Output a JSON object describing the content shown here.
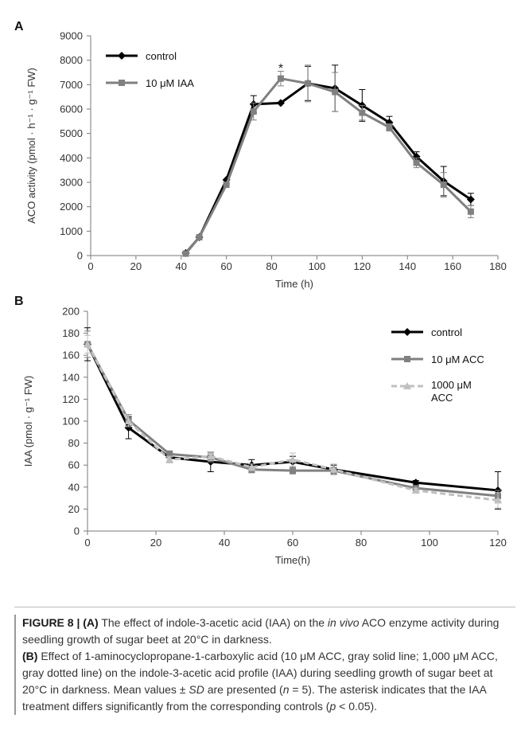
{
  "chart_data": [
    {
      "panel": "A",
      "type": "line",
      "xlabel": "Time (h)",
      "ylabel": "ACO activity (pmol · h⁻¹ · g⁻¹ FW)",
      "xlim": [
        0,
        180
      ],
      "ylim": [
        0,
        9000
      ],
      "xticks": [
        0,
        20,
        40,
        60,
        80,
        100,
        120,
        140,
        160,
        180
      ],
      "yticks": [
        0,
        1000,
        2000,
        3000,
        4000,
        5000,
        6000,
        7000,
        8000,
        9000
      ],
      "grid": false,
      "legend": "top-left",
      "annotation": {
        "text": "*",
        "x": 84,
        "y": 7700
      },
      "series": [
        {
          "name": "control",
          "color": "#000000",
          "marker": "diamond",
          "dash": "solid",
          "x": [
            42,
            48,
            60,
            72,
            84,
            96,
            108,
            120,
            132,
            144,
            156,
            168
          ],
          "y": [
            100,
            750,
            3100,
            6200,
            6250,
            7050,
            6850,
            6150,
            5450,
            4050,
            3050,
            2300
          ],
          "err": [
            0,
            0,
            0,
            350,
            0,
            700,
            950,
            650,
            250,
            200,
            600,
            250
          ]
        },
        {
          "name": "10 μM IAA",
          "color": "#808080",
          "marker": "square",
          "dash": "solid",
          "x": [
            42,
            48,
            60,
            72,
            84,
            96,
            108,
            120,
            132,
            144,
            156,
            168
          ],
          "y": [
            80,
            750,
            2900,
            5900,
            7250,
            7050,
            6700,
            5850,
            5250,
            3800,
            2900,
            1800
          ],
          "err": [
            0,
            0,
            0,
            350,
            300,
            750,
            800,
            300,
            150,
            200,
            500,
            250
          ]
        }
      ]
    },
    {
      "panel": "B",
      "type": "line",
      "xlabel": "Time(h)",
      "ylabel": "IAA (pmol · g⁻¹ FW)",
      "xlim": [
        0,
        120
      ],
      "ylim": [
        0,
        200
      ],
      "xticks": [
        0,
        20,
        40,
        60,
        80,
        100,
        120
      ],
      "yticks": [
        0,
        20,
        40,
        60,
        80,
        100,
        120,
        140,
        160,
        180,
        200
      ],
      "grid": false,
      "legend": "right",
      "series": [
        {
          "name": "control",
          "color": "#000000",
          "marker": "diamond",
          "dash": "solid",
          "x": [
            0,
            12,
            24,
            36,
            48,
            60,
            72,
            96,
            120
          ],
          "y": [
            170,
            94,
            67,
            63,
            60,
            63,
            56,
            44,
            37
          ],
          "err": [
            15,
            10,
            4,
            9,
            5,
            5,
            4,
            2,
            17
          ]
        },
        {
          "name": "10 μM ACC",
          "color": "#808080",
          "marker": "square",
          "dash": "solid",
          "x": [
            0,
            12,
            24,
            36,
            48,
            60,
            72,
            96,
            120
          ],
          "y": [
            170,
            101,
            70,
            67,
            56,
            55,
            55,
            39,
            32
          ],
          "err": [
            12,
            5,
            3,
            4,
            3,
            3,
            3,
            2,
            5
          ]
        },
        {
          "name": "1000 μM ACC",
          "color": "#c0c0c0",
          "marker": "triangle",
          "dash": "dashed",
          "x": [
            0,
            12,
            24,
            36,
            48,
            60,
            72,
            96,
            120
          ],
          "y": [
            170,
            100,
            65,
            68,
            58,
            65,
            56,
            37,
            28
          ],
          "err": [
            8,
            5,
            3,
            4,
            3,
            6,
            5,
            2,
            7
          ]
        }
      ]
    }
  ],
  "caption": {
    "fig_label": "FIGURE 8 | ",
    "a_tag": "(A)",
    "a_text_1": " The effect of indole-3-acetic acid (IAA) on the ",
    "a_italic": "in vivo",
    "a_text_2": " ACO enzyme activity during seedling growth of sugar beet at 20°C in darkness.",
    "b_tag": "(B)",
    "b_text_1": " Effect of 1-aminocyclopropane-1-carboxylic acid (10 μM ACC, gray solid line; 1,000 μM ACC, gray dotted line) on the indole-3-acetic acid profile (IAA) during seedling growth of sugar beet at 20°C in darkness. Mean values ± ",
    "b_italic_sd": "SD",
    "b_text_2": " are presented (",
    "b_italic_n": "n",
    "b_text_3": " = 5). The asterisk indicates that the IAA treatment differs significantly from the corresponding controls (",
    "b_italic_p": "p",
    "b_text_4": " < 0.05)."
  }
}
